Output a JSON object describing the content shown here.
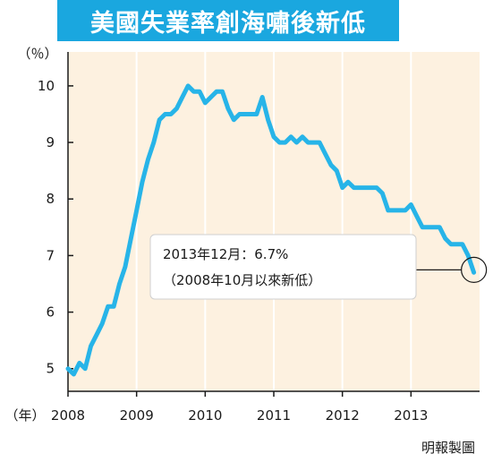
{
  "colors": {
    "title_bg": "#1aa7df",
    "title_text": "#ffffff",
    "line": "#27b4e8",
    "plot_bg": "#fdf1e0",
    "gridline": "#ffffff",
    "axis": "#1a1a1a"
  },
  "credit": "明報製圖",
  "chart_data": {
    "type": "line",
    "title": "美國失業率創海嘯後新低",
    "ylabel": "（％）",
    "xlabel": "（年）",
    "ylim": [
      4.6,
      10.6
    ],
    "yticks": [
      5,
      6,
      7,
      8,
      9,
      10
    ],
    "xlim": [
      2008.0,
      2014.0
    ],
    "xticks": [
      2008,
      2009,
      2010,
      2011,
      2012,
      2013
    ],
    "xtick_labels": [
      "2008",
      "2009",
      "2010",
      "2011",
      "2012",
      "2013"
    ],
    "grid": true,
    "annotation": {
      "line1": "2013年12月：6.7%",
      "line2": "（2008年10月以來新低）",
      "x": 2013.917,
      "y": 6.7
    },
    "series": [
      {
        "x": [
          2008.0,
          2008.083,
          2008.167,
          2008.25,
          2008.333,
          2008.417,
          2008.5,
          2008.583,
          2008.667,
          2008.75,
          2008.833,
          2008.917,
          2009.0,
          2009.083,
          2009.167,
          2009.25,
          2009.333,
          2009.417,
          2009.5,
          2009.583,
          2009.667,
          2009.75,
          2009.833,
          2009.917,
          2010.0,
          2010.083,
          2010.167,
          2010.25,
          2010.333,
          2010.417,
          2010.5,
          2010.583,
          2010.667,
          2010.75,
          2010.833,
          2010.917,
          2011.0,
          2011.083,
          2011.167,
          2011.25,
          2011.333,
          2011.417,
          2011.5,
          2011.583,
          2011.667,
          2011.75,
          2011.833,
          2011.917,
          2012.0,
          2012.083,
          2012.167,
          2012.25,
          2012.333,
          2012.417,
          2012.5,
          2012.583,
          2012.667,
          2012.75,
          2012.833,
          2012.917,
          2013.0,
          2013.083,
          2013.167,
          2013.25,
          2013.333,
          2013.417,
          2013.5,
          2013.583,
          2013.667,
          2013.75,
          2013.833,
          2013.917
        ],
        "values": [
          5.0,
          4.9,
          5.1,
          5.0,
          5.4,
          5.6,
          5.8,
          6.1,
          6.1,
          6.5,
          6.8,
          7.3,
          7.8,
          8.3,
          8.7,
          9.0,
          9.4,
          9.5,
          9.5,
          9.6,
          9.8,
          10.0,
          9.9,
          9.9,
          9.7,
          9.8,
          9.9,
          9.9,
          9.6,
          9.4,
          9.5,
          9.5,
          9.5,
          9.5,
          9.8,
          9.4,
          9.1,
          9.0,
          9.0,
          9.1,
          9.0,
          9.1,
          9.0,
          9.0,
          9.0,
          8.8,
          8.6,
          8.5,
          8.2,
          8.3,
          8.2,
          8.2,
          8.2,
          8.2,
          8.2,
          8.1,
          7.8,
          7.8,
          7.8,
          7.8,
          7.9,
          7.7,
          7.5,
          7.5,
          7.5,
          7.5,
          7.3,
          7.2,
          7.2,
          7.2,
          7.0,
          6.7
        ]
      }
    ]
  }
}
